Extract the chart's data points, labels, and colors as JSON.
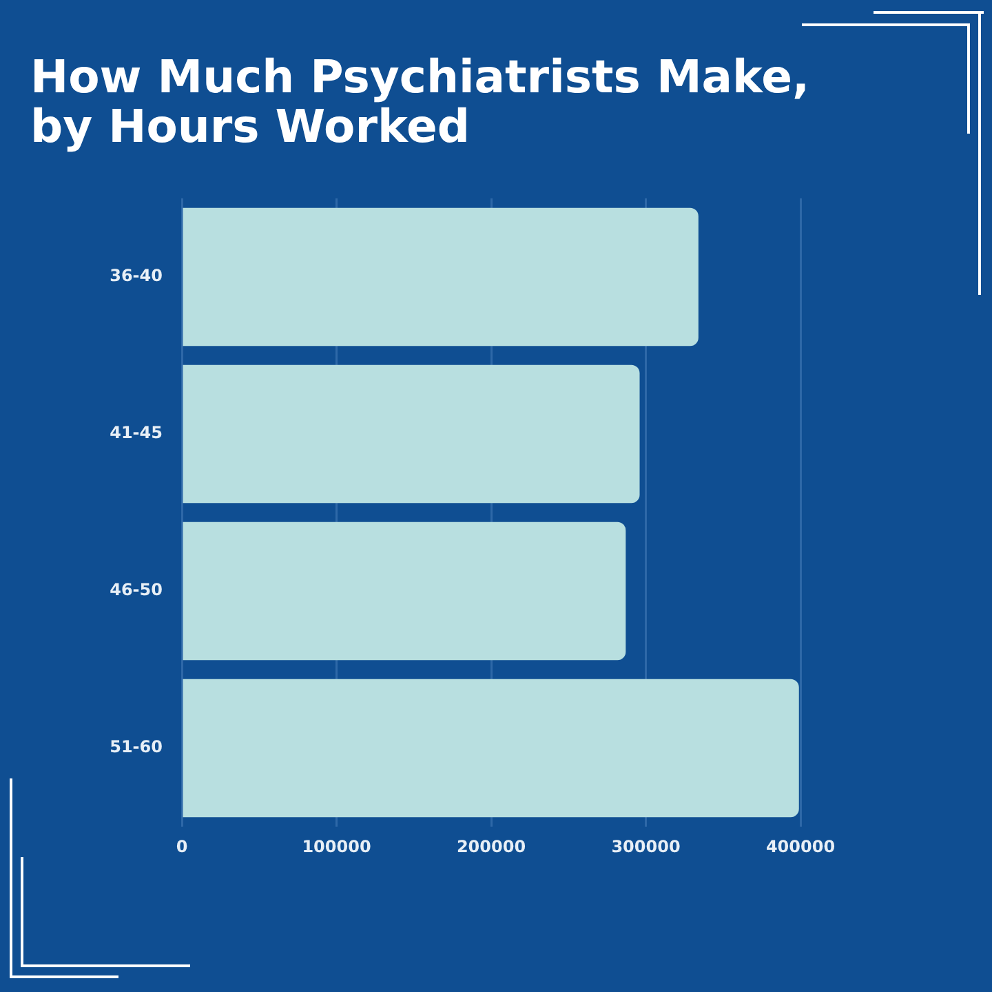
{
  "chart_data": {
    "type": "bar",
    "title": "How Much Psychiatrists Make, by Hours Worked",
    "orientation": "horizontal",
    "categories": [
      "36-40",
      "41-45",
      "46-50",
      "51-60"
    ],
    "values": [
      334000,
      296000,
      287000,
      399000
    ],
    "color": "#b8dfe0",
    "xlim": [
      0,
      400000
    ],
    "xticks": [
      0,
      100000,
      200000,
      300000,
      400000
    ],
    "grid": "x"
  }
}
